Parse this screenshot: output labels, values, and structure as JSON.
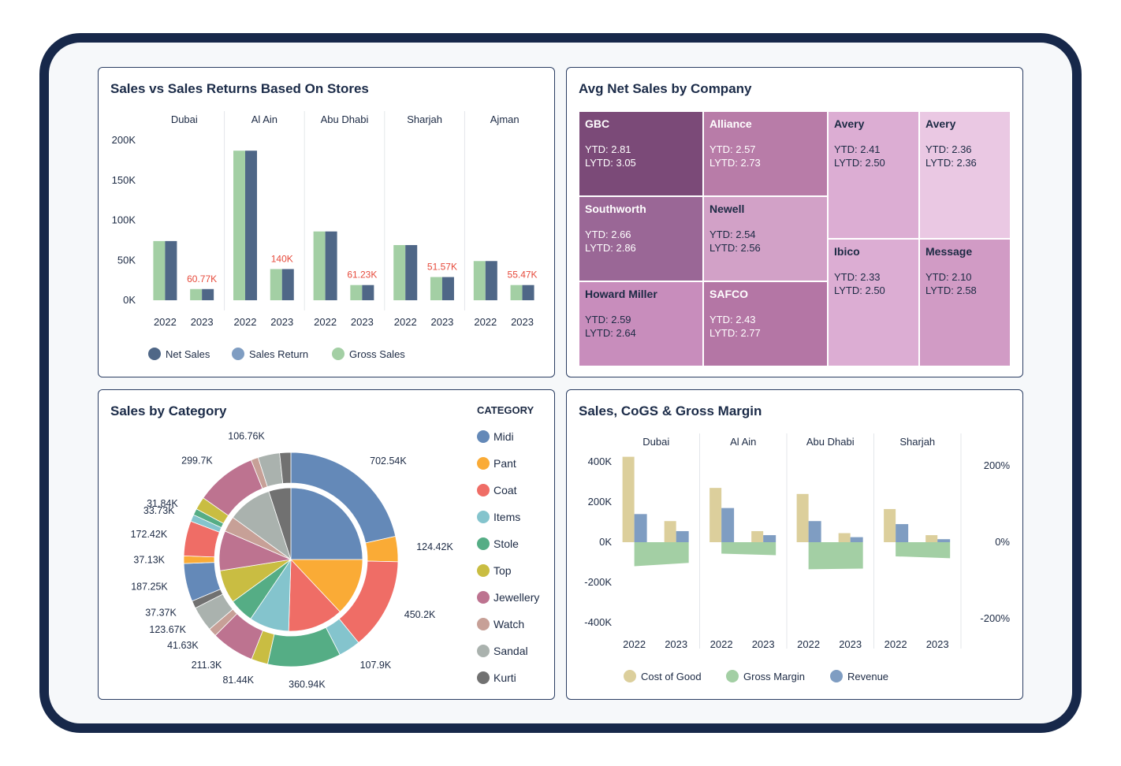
{
  "colors": {
    "net_sales": "#4f6787",
    "sales_return": "#7f9dc2",
    "gross_sales": "#a3cfa4",
    "highlight_label": "#e64a3b",
    "cost_of_good": "#dccf9c",
    "gross_margin": "#a3cfa4",
    "revenue": "#7f9dc2"
  },
  "panels": {
    "stores": {
      "title": "Sales vs Sales Returns Based On Stores"
    },
    "company": {
      "title": "Avg Net Sales by Company"
    },
    "category": {
      "title": "Sales by Category",
      "legend_title": "CATEGORY"
    },
    "cogs": {
      "title": "Sales, CoGS & Gross Margin"
    }
  },
  "chart_data": [
    {
      "id": "stores",
      "type": "bar",
      "title": "Sales vs Sales Returns Based On Stores",
      "groups": [
        "Dubai",
        "Al Ain",
        "Abu Dhabi",
        "Sharjah",
        "Ajman"
      ],
      "categories": [
        "2022",
        "2023"
      ],
      "ylim": [
        0,
        200000
      ],
      "y_ticks": [
        "200K",
        "150K",
        "100K",
        "50K",
        "0K"
      ],
      "legend": [
        "Net Sales",
        "Sales Return",
        "Gross Sales"
      ],
      "series": [
        {
          "name": "Gross Sales",
          "values": [
            [
              74000,
              14000
            ],
            [
              187000,
              39000
            ],
            [
              86000,
              19000
            ],
            [
              69000,
              29000
            ],
            [
              49000,
              19000
            ]
          ]
        },
        {
          "name": "Net Sales",
          "values": [
            [
              74000,
              14000
            ],
            [
              187000,
              39000
            ],
            [
              86000,
              19000
            ],
            [
              69000,
              29000
            ],
            [
              49000,
              19000
            ]
          ]
        }
      ],
      "data_labels": [
        {
          "group": "Dubai",
          "x": "2023",
          "text": "60.77K"
        },
        {
          "group": "Al Ain",
          "x": "2023",
          "text": "140K"
        },
        {
          "group": "Abu Dhabi",
          "x": "2023",
          "text": "61.23K"
        },
        {
          "group": "Sharjah",
          "x": "2023",
          "text": "51.57K"
        },
        {
          "group": "Ajman",
          "x": "2023",
          "text": "55.47K"
        }
      ]
    },
    {
      "id": "company",
      "type": "treemap",
      "title": "Avg Net Sales by Company",
      "cells": [
        {
          "name": "GBC",
          "ytd": "YTD: 2.81",
          "lytd": "LYTD: 3.05",
          "color": "#7b4a78",
          "text": "#ffffff"
        },
        {
          "name": "Alliance",
          "ytd": "YTD: 2.57",
          "lytd": "LYTD: 2.73",
          "color": "#b87ca8",
          "text": "#ffffff"
        },
        {
          "name": "Avery",
          "ytd": "YTD: 2.41",
          "lytd": "LYTD: 2.50",
          "color": "#dcadd3",
          "text": "#1c2a44"
        },
        {
          "name": "Avery",
          "ytd": "YTD: 2.36",
          "lytd": "LYTD: 2.36",
          "color": "#eac8e3",
          "text": "#1c2a44"
        },
        {
          "name": "Southworth",
          "ytd": "YTD: 2.66",
          "lytd": "LYTD: 2.86",
          "color": "#9a6796",
          "text": "#ffffff"
        },
        {
          "name": "Newell",
          "ytd": "YTD: 2.54",
          "lytd": "LYTD: 2.56",
          "color": "#d2a1c7",
          "text": "#1c2a44"
        },
        {
          "name": "Ibico",
          "ytd": "YTD: 2.33",
          "lytd": "LYTD: 2.50",
          "color": "#dcadd3",
          "text": "#1c2a44"
        },
        {
          "name": "Message",
          "ytd": "YTD: 2.10",
          "lytd": "LYTD: 2.58",
          "color": "#d19bc5",
          "text": "#1c2a44"
        },
        {
          "name": "Howard Miller",
          "ytd": "YTD: 2.59",
          "lytd": "LYTD: 2.64",
          "color": "#c88dbc",
          "text": "#1c2a44"
        },
        {
          "name": "SAFCO",
          "ytd": "YTD: 2.43",
          "lytd": "LYTD: 2.77",
          "color": "#b476a5",
          "text": "#ffffff"
        }
      ]
    },
    {
      "id": "category",
      "type": "pie",
      "title": "Sales by Category",
      "legend_title": "CATEGORY",
      "legend": [
        {
          "name": "Midi",
          "color": "#6489b8"
        },
        {
          "name": "Pant",
          "color": "#faab36"
        },
        {
          "name": "Coat",
          "color": "#ef6d66"
        },
        {
          "name": "Items",
          "color": "#84c4cd"
        },
        {
          "name": "Stole",
          "color": "#55ad85"
        },
        {
          "name": "Top",
          "color": "#c9bd42"
        },
        {
          "name": "Jewellery",
          "color": "#bd7390"
        },
        {
          "name": "Watch",
          "color": "#c7a097"
        },
        {
          "name": "Sandal",
          "color": "#aab2ae"
        },
        {
          "name": "Kurti",
          "color": "#717171"
        }
      ],
      "outer_ring": [
        {
          "category": "Midi",
          "value": 702540,
          "label": "702.54K"
        },
        {
          "category": "Pant",
          "value": 124420,
          "label": "124.42K"
        },
        {
          "category": "Coat",
          "value": 450200,
          "label": "450.2K"
        },
        {
          "category": "Items",
          "value": 107900,
          "label": "107.9K"
        },
        {
          "category": "Stole",
          "value": 360940,
          "label": "360.94K"
        },
        {
          "category": "Top",
          "value": 81440,
          "label": "81.44K"
        },
        {
          "category": "Jewellery",
          "value": 211300,
          "label": "211.3K"
        },
        {
          "category": "Watch",
          "value": 41630,
          "label": "41.63K"
        },
        {
          "category": "Sandal",
          "value": 123670,
          "label": "123.67K"
        },
        {
          "category": "Kurti",
          "value": 37370,
          "label": "37.37K"
        },
        {
          "category": "Midi",
          "value": 187250,
          "label": "187.25K"
        },
        {
          "category": "Pant",
          "value": 37130,
          "label": "37.13K"
        },
        {
          "category": "Coat",
          "value": 172420,
          "label": "172.42K"
        },
        {
          "category": "Items",
          "value": 33730,
          "label": "33.73K"
        },
        {
          "category": "Stole",
          "value": 31840,
          "label": "31.84K"
        },
        {
          "category": "Top",
          "value": 63000,
          "label": ""
        },
        {
          "category": "Jewellery",
          "value": 299700,
          "label": "299.7K"
        },
        {
          "category": "Watch",
          "value": 36000,
          "label": ""
        },
        {
          "category": "Sandal",
          "value": 106760,
          "label": "106.76K"
        },
        {
          "category": "Kurti",
          "value": 55000,
          "label": ""
        }
      ],
      "inner_ring": [
        {
          "category": "Midi",
          "value": 25.0
        },
        {
          "category": "Pant",
          "value": 13.0
        },
        {
          "category": "Coat",
          "value": 12.5
        },
        {
          "category": "Items",
          "value": 9.0
        },
        {
          "category": "Stole",
          "value": 5.5
        },
        {
          "category": "Top",
          "value": 7.5
        },
        {
          "category": "Jewellery",
          "value": 9.0
        },
        {
          "category": "Watch",
          "value": 3.5
        },
        {
          "category": "Sandal",
          "value": 10.0
        },
        {
          "category": "Kurti",
          "value": 5.0
        }
      ]
    },
    {
      "id": "cogs",
      "type": "bar",
      "title": "Sales, CoGS & Gross Margin",
      "groups": [
        "Dubai",
        "Al Ain",
        "Abu Dhabi",
        "Sharjah"
      ],
      "categories": [
        "2022",
        "2023"
      ],
      "ylim": [
        -400000,
        450000
      ],
      "y_ticks": [
        "400K",
        "200K",
        "0K",
        "-200K",
        "-400K"
      ],
      "y2_ticks": [
        "200%",
        "0%",
        "-200%"
      ],
      "y2lim": [
        -200,
        200
      ],
      "legend": [
        "Cost of Good",
        "Gross Margin",
        "Revenue"
      ],
      "series": [
        {
          "name": "Cost of Good",
          "values": [
            [
              425000,
              105000
            ],
            [
              270000,
              55000
            ],
            [
              240000,
              45000
            ],
            [
              165000,
              35000
            ]
          ]
        },
        {
          "name": "Revenue",
          "values": [
            [
              140000,
              55000
            ],
            [
              170000,
              35000
            ],
            [
              105000,
              25000
            ],
            [
              90000,
              15000
            ]
          ]
        },
        {
          "name": "Gross Margin",
          "values": [
            [
              -63,
              -54
            ],
            [
              -30,
              -34
            ],
            [
              -71,
              -69
            ],
            [
              -37,
              -42
            ]
          ]
        }
      ]
    }
  ]
}
